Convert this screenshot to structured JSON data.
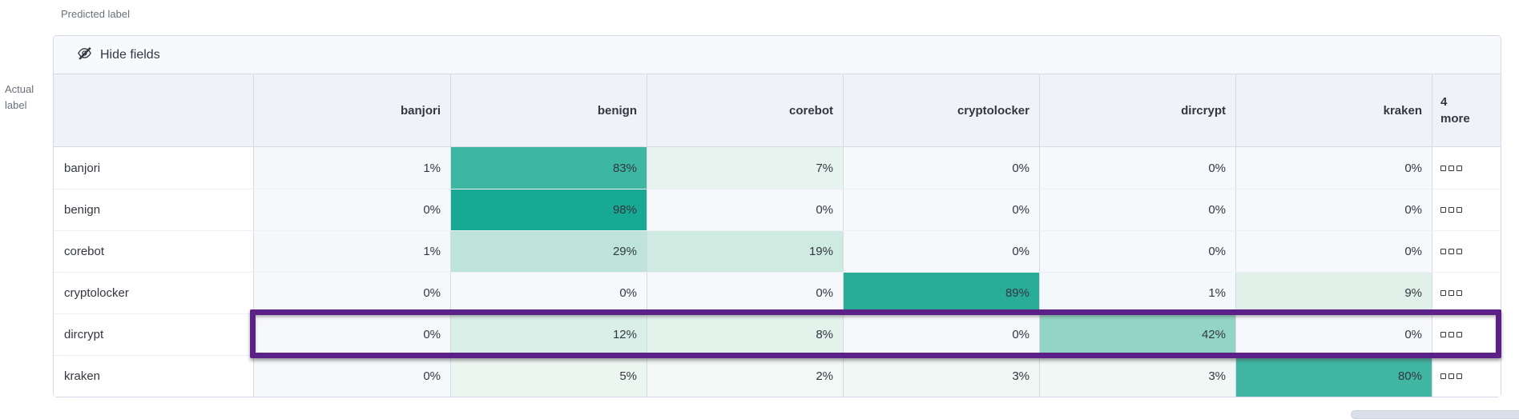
{
  "page": {
    "predicted_axis_label": "Predicted label",
    "actual_axis_label": "Actual\nlabel"
  },
  "toolbar": {
    "hide_fields_label": "Hide fields",
    "hide_fields_icon": "eye-closed-icon"
  },
  "matrix": {
    "columns": [
      "banjori",
      "benign",
      "corebot",
      "cryptolocker",
      "dircrypt",
      "kraken"
    ],
    "more_columns_label": "4\nmore",
    "row_actions_icon": "boxes-horizontal-icon",
    "highlighted_row": "dircrypt",
    "rows": [
      {
        "label": "banjori",
        "cells": [
          {
            "v": "1%",
            "bg": "#f4f8fa"
          },
          {
            "v": "83%",
            "bg": "#3db6a2"
          },
          {
            "v": "7%",
            "bg": "#e6f3ee"
          },
          {
            "v": "0%",
            "bg": "#f7f8fc"
          },
          {
            "v": "0%",
            "bg": "#f7f8fc"
          },
          {
            "v": "0%",
            "bg": "#f7f8fc"
          }
        ]
      },
      {
        "label": "benign",
        "cells": [
          {
            "v": "0%",
            "bg": "#f7f8fc"
          },
          {
            "v": "98%",
            "bg": "#17a993"
          },
          {
            "v": "0%",
            "bg": "#f7f8fc"
          },
          {
            "v": "0%",
            "bg": "#f7f8fc"
          },
          {
            "v": "0%",
            "bg": "#f7f8fc"
          },
          {
            "v": "0%",
            "bg": "#f7f8fc"
          }
        ]
      },
      {
        "label": "corebot",
        "cells": [
          {
            "v": "1%",
            "bg": "#f4f8fa"
          },
          {
            "v": "29%",
            "bg": "#bee4d9"
          },
          {
            "v": "19%",
            "bg": "#cfeae0"
          },
          {
            "v": "0%",
            "bg": "#f7f8fc"
          },
          {
            "v": "0%",
            "bg": "#f7f8fc"
          },
          {
            "v": "0%",
            "bg": "#f7f8fc"
          }
        ]
      },
      {
        "label": "cryptolocker",
        "cells": [
          {
            "v": "0%",
            "bg": "#f7f8fc"
          },
          {
            "v": "0%",
            "bg": "#f7f8fc"
          },
          {
            "v": "0%",
            "bg": "#f7f8fc"
          },
          {
            "v": "89%",
            "bg": "#29ad99"
          },
          {
            "v": "1%",
            "bg": "#f4f8fa"
          },
          {
            "v": "9%",
            "bg": "#e1f1ea"
          }
        ]
      },
      {
        "label": "dircrypt",
        "cells": [
          {
            "v": "0%",
            "bg": "#f7f8fc"
          },
          {
            "v": "12%",
            "bg": "#daefe7"
          },
          {
            "v": "8%",
            "bg": "#e4f2ec"
          },
          {
            "v": "0%",
            "bg": "#f7f8fc"
          },
          {
            "v": "42%",
            "bg": "#92d5c4"
          },
          {
            "v": "0%",
            "bg": "#f7f8fc"
          }
        ]
      },
      {
        "label": "kraken",
        "cells": [
          {
            "v": "0%",
            "bg": "#f7f8fc"
          },
          {
            "v": "5%",
            "bg": "#ecf6f1"
          },
          {
            "v": "2%",
            "bg": "#f2f8f6"
          },
          {
            "v": "3%",
            "bg": "#f0f7f4"
          },
          {
            "v": "3%",
            "bg": "#f0f7f4"
          },
          {
            "v": "80%",
            "bg": "#40b6a3"
          }
        ]
      }
    ]
  },
  "colors": {
    "accent_teal": "#17a993",
    "highlight_purple": "#5c2187",
    "header_bg": "#eff2f7",
    "toolbar_bg": "#f8f9fc",
    "border": "#d3dae6",
    "text": "#343741",
    "muted_text": "#69707d"
  }
}
